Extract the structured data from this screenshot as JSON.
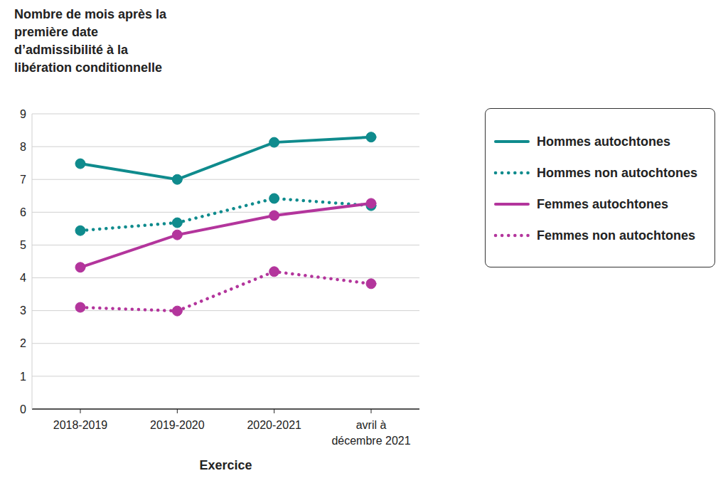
{
  "chart_data": {
    "type": "line",
    "y_label": "Nombre de mois après la première date d’admissibilité à la libération conditionnelle",
    "x_label": "Exercice",
    "categories": [
      "2018-2019",
      "2019-2020",
      "2020-2021",
      "avril à décembre 2021"
    ],
    "series": [
      {
        "name": "Hommes autochtones",
        "color": "#0f8b8d",
        "line_style": "solid",
        "marker": "circle",
        "values": [
          7.48,
          7.0,
          8.13,
          8.29
        ]
      },
      {
        "name": "Hommes non autochtones",
        "color": "#0f8b8d",
        "line_style": "dotted",
        "marker": "circle",
        "values": [
          5.44,
          5.68,
          6.42,
          6.2
        ]
      },
      {
        "name": "Femmes autochtones",
        "color": "#b3359c",
        "line_style": "solid",
        "marker": "circle",
        "values": [
          4.32,
          5.31,
          5.9,
          6.27
        ]
      },
      {
        "name": "Femmes non autochtones",
        "color": "#b3359c",
        "line_style": "dotted",
        "marker": "circle",
        "values": [
          3.1,
          2.99,
          4.19,
          3.82
        ]
      }
    ],
    "ylim": [
      0,
      9
    ],
    "yticks": [
      0,
      1,
      2,
      3,
      4,
      5,
      6,
      7,
      8,
      9
    ],
    "grid": true,
    "legend": "right"
  }
}
